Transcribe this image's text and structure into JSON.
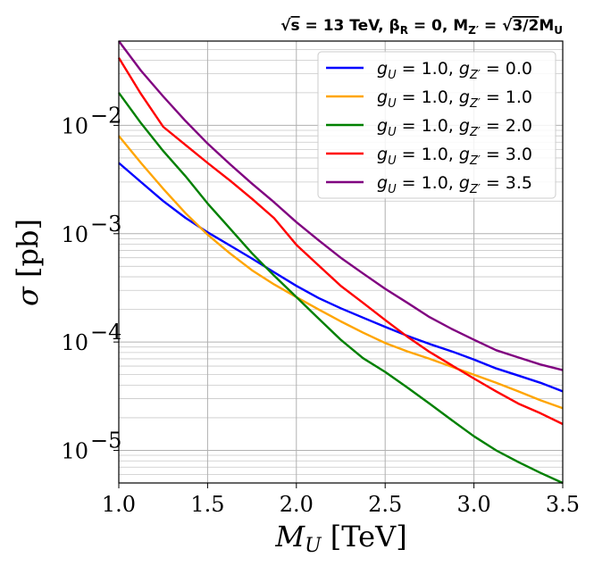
{
  "chart_data": {
    "type": "line",
    "title_parts": {
      "sqrt_symbol": "√",
      "s": "s",
      "energy": " = 13 TeV, β",
      "beta_sub": "R",
      "beta_eq": " = 0, M",
      "mz_sub": "Z′",
      "mz_eq": " = ",
      "ratio": "3/2",
      "mu": "M",
      "mu_sub": "U"
    },
    "xlabel_main": "M",
    "xlabel_sub": "U",
    "xlabel_unit": " [TeV]",
    "ylabel_main": "σ",
    "ylabel_unit": " [pb]",
    "xlim": [
      1.0,
      3.5
    ],
    "ylim": [
      5e-06,
      0.06
    ],
    "yscale": "log",
    "grid": true,
    "legend_position": "top-right",
    "x_ticks": [
      "1.0",
      "1.5",
      "2.0",
      "2.5",
      "3.0",
      "3.5"
    ],
    "y_ticks": [
      {
        "base": "10",
        "exp": "−2",
        "value": 0.01
      },
      {
        "base": "10",
        "exp": "−3",
        "value": 0.001
      },
      {
        "base": "10",
        "exp": "−4",
        "value": 0.0001
      },
      {
        "base": "10",
        "exp": "−5",
        "value": 1e-05
      }
    ],
    "x": [
      1.0,
      1.125,
      1.25,
      1.375,
      1.5,
      1.625,
      1.75,
      1.875,
      2.0,
      2.125,
      2.25,
      2.375,
      2.5,
      2.625,
      2.75,
      2.875,
      3.0,
      3.125,
      3.25,
      3.375,
      3.5
    ],
    "series": [
      {
        "name": "gU = 1.0, gZ' = 0.0",
        "legend_label": {
          "g1": "g",
          "s1": "U",
          "eq1": " = 1.0, ",
          "g2": "g",
          "s2": "Z′",
          "eq2": " = 0.0"
        },
        "color": "#0000ff",
        "values": [
          0.0045,
          0.003,
          0.002,
          0.0014,
          0.00103,
          0.00078,
          0.00059,
          0.00044,
          0.00033,
          0.000255,
          0.000205,
          0.000168,
          0.000138,
          0.000114,
          9.6e-05,
          8.2e-05,
          6.9e-05,
          5.7e-05,
          4.9e-05,
          4.2e-05,
          3.5e-05
        ]
      },
      {
        "name": "gU = 1.0, gZ' = 1.0",
        "legend_label": {
          "g1": "g",
          "s1": "U",
          "eq1": " = 1.0, ",
          "g2": "g",
          "s2": "Z′",
          "eq2": " = 1.0"
        },
        "color": "#ffa500",
        "values": [
          0.008,
          0.0045,
          0.0026,
          0.00155,
          0.00098,
          0.00066,
          0.00046,
          0.00034,
          0.00026,
          0.0002,
          0.000155,
          0.000122,
          9.8e-05,
          8.2e-05,
          7e-05,
          5.9e-05,
          5e-05,
          4.2e-05,
          3.5e-05,
          2.9e-05,
          2.45e-05
        ]
      },
      {
        "name": "gU = 1.0, gZ' = 2.0",
        "legend_label": {
          "g1": "g",
          "s1": "U",
          "eq1": " = 1.0, ",
          "g2": "g",
          "s2": "Z′",
          "eq2": " = 2.0"
        },
        "color": "#008000",
        "values": [
          0.02,
          0.0105,
          0.0058,
          0.0034,
          0.0019,
          0.00112,
          0.00066,
          0.00041,
          0.00026,
          0.000165,
          0.000105,
          7.1e-05,
          5.3e-05,
          3.8e-05,
          2.7e-05,
          1.9e-05,
          1.35e-05,
          1e-05,
          7.8e-06,
          6.2e-06,
          5e-06
        ]
      },
      {
        "name": "gU = 1.0, gZ' = 3.0",
        "legend_label": {
          "g1": "g",
          "s1": "U",
          "eq1": " = 1.0, ",
          "g2": "g",
          "s2": "Z′",
          "eq2": " = 3.0"
        },
        "color": "#ff0000",
        "values": [
          0.042,
          0.0195,
          0.0097,
          0.0066,
          0.0045,
          0.0031,
          0.0021,
          0.00139,
          0.00079,
          0.00051,
          0.00033,
          0.00023,
          0.00016,
          0.000112,
          8.1e-05,
          6.1e-05,
          4.6e-05,
          3.5e-05,
          2.7e-05,
          2.2e-05,
          1.75e-05
        ]
      },
      {
        "name": "gU = 1.0, gZ' = 3.5",
        "legend_label": {
          "g1": "g",
          "s1": "U",
          "eq1": " = 1.0, ",
          "g2": "g",
          "s2": "Z′",
          "eq2": " = 3.5"
        },
        "color": "#800080",
        "values": [
          0.06,
          0.032,
          0.0185,
          0.011,
          0.0068,
          0.0044,
          0.0029,
          0.00195,
          0.00128,
          0.00087,
          0.0006,
          0.00043,
          0.00031,
          0.00023,
          0.00017,
          0.000132,
          0.000105,
          8.4e-05,
          7.2e-05,
          6.2e-05,
          5.5e-05
        ]
      }
    ]
  }
}
